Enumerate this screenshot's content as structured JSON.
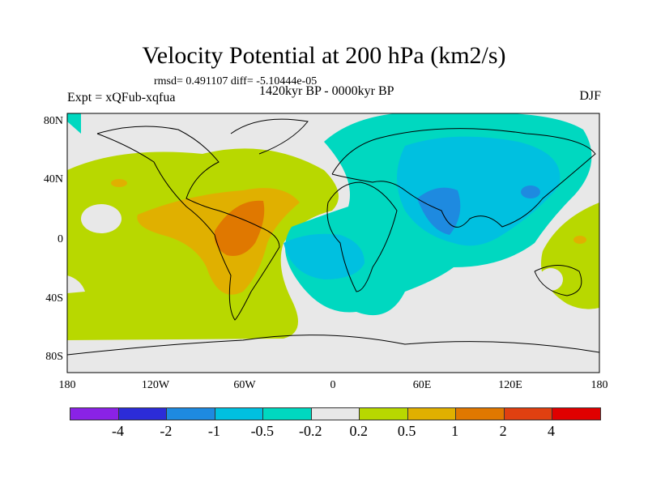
{
  "title": "Velocity Potential at 200 hPa (km2/s)",
  "stats": "rmsd= 0.491107 diff= -5.10444e-05",
  "experiment": "Expt = xQFub-xqfua",
  "period": "1420kyr BP - 0000kyr BP",
  "season": "DJF",
  "lat_labels": [
    "80N",
    "40N",
    "0",
    "40S",
    "80S"
  ],
  "lon_labels": [
    "180",
    "120W",
    "60W",
    "0",
    "60E",
    "120E",
    "180"
  ],
  "colorbar": {
    "colors": [
      "#8a22e6",
      "#2c2cd8",
      "#1e8ae0",
      "#00c0e0",
      "#00d8c0",
      "#e8e8e8",
      "#b8d800",
      "#e0b000",
      "#e07800",
      "#e04010",
      "#e00000"
    ],
    "labels": [
      "-4",
      "-2",
      "-1",
      "-0.5",
      "-0.2",
      "0.2",
      "0.5",
      "1",
      "2",
      "4"
    ]
  }
}
